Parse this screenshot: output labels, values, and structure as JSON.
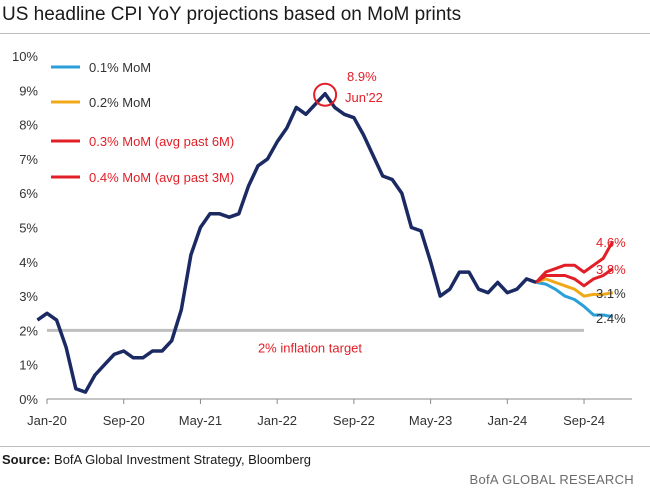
{
  "title": "US headline CPI YoY projections based on MoM prints",
  "source_label": "Source:",
  "source_text": "BofA Global Investment Strategy, Bloomberg",
  "brand": "BofA GLOBAL RESEARCH",
  "colors": {
    "history": "#1b2a63",
    "mom01": "#2b9fd9",
    "mom02": "#f0a818",
    "mom03": "#e21e26",
    "mom04": "#e21e26",
    "target": "#bfbfbf",
    "annotation": "#e21e26"
  },
  "chart_data": {
    "type": "line",
    "title": "US headline CPI YoY projections based on MoM prints",
    "ylim": [
      0,
      10
    ],
    "y_ticks": [
      "0%",
      "1%",
      "2%",
      "3%",
      "4%",
      "5%",
      "6%",
      "7%",
      "8%",
      "9%",
      "10%"
    ],
    "x_ticks": [
      "Jan-20",
      "Sep-20",
      "May-21",
      "Jan-22",
      "Sep-22",
      "May-23",
      "Jan-24",
      "Sep-24"
    ],
    "x_range": [
      "2020-01",
      "2025-02"
    ],
    "grid": false,
    "legend_position": "top-left",
    "history": {
      "x": [
        "2019-12",
        "2020-01",
        "2020-02",
        "2020-03",
        "2020-04",
        "2020-05",
        "2020-06",
        "2020-07",
        "2020-08",
        "2020-09",
        "2020-10",
        "2020-11",
        "2020-12",
        "2021-01",
        "2021-02",
        "2021-03",
        "2021-04",
        "2021-05",
        "2021-06",
        "2021-07",
        "2021-08",
        "2021-09",
        "2021-10",
        "2021-11",
        "2021-12",
        "2022-01",
        "2022-02",
        "2022-03",
        "2022-04",
        "2022-05",
        "2022-06",
        "2022-07",
        "2022-08",
        "2022-09",
        "2022-10",
        "2022-11",
        "2022-12",
        "2023-01",
        "2023-02",
        "2023-03",
        "2023-04",
        "2023-05",
        "2023-06",
        "2023-07",
        "2023-08",
        "2023-09",
        "2023-10",
        "2023-11",
        "2023-12",
        "2024-01",
        "2024-02",
        "2024-03",
        "2024-04"
      ],
      "y": [
        2.3,
        2.5,
        2.3,
        1.5,
        0.3,
        0.2,
        0.7,
        1.0,
        1.3,
        1.4,
        1.2,
        1.2,
        1.4,
        1.4,
        1.7,
        2.6,
        4.2,
        5.0,
        5.4,
        5.4,
        5.3,
        5.4,
        6.2,
        6.8,
        7.0,
        7.5,
        7.9,
        8.5,
        8.3,
        8.6,
        8.9,
        8.5,
        8.3,
        8.2,
        7.7,
        7.1,
        6.5,
        6.4,
        6.0,
        5.0,
        4.9,
        4.0,
        3.0,
        3.2,
        3.7,
        3.7,
        3.2,
        3.1,
        3.4,
        3.1,
        3.2,
        3.5,
        3.4
      ]
    },
    "series": [
      {
        "name": "0.1% MoM",
        "x": [
          "2024-04",
          "2024-05",
          "2024-06",
          "2024-07",
          "2024-08",
          "2024-09",
          "2024-10",
          "2024-11",
          "2024-12"
        ],
        "y": [
          3.4,
          3.35,
          3.2,
          3.0,
          2.9,
          2.7,
          2.45,
          2.45,
          2.4
        ]
      },
      {
        "name": "0.2% MoM",
        "x": [
          "2024-04",
          "2024-05",
          "2024-06",
          "2024-07",
          "2024-08",
          "2024-09",
          "2024-10",
          "2024-11",
          "2024-12"
        ],
        "y": [
          3.4,
          3.5,
          3.4,
          3.3,
          3.2,
          3.0,
          3.05,
          3.05,
          3.1
        ]
      },
      {
        "name": "0.3% MoM (avg past 6M)",
        "x": [
          "2024-04",
          "2024-05",
          "2024-06",
          "2024-07",
          "2024-08",
          "2024-09",
          "2024-10",
          "2024-11",
          "2024-12"
        ],
        "y": [
          3.4,
          3.6,
          3.6,
          3.6,
          3.5,
          3.3,
          3.5,
          3.6,
          3.8
        ]
      },
      {
        "name": "0.4% MoM (avg past 3M)",
        "x": [
          "2024-04",
          "2024-05",
          "2024-06",
          "2024-07",
          "2024-08",
          "2024-09",
          "2024-10",
          "2024-11",
          "2024-12"
        ],
        "y": [
          3.4,
          3.7,
          3.8,
          3.9,
          3.9,
          3.7,
          3.9,
          4.1,
          4.6
        ]
      }
    ],
    "end_labels": [
      "2.4%",
      "3.1%",
      "3.8%",
      "4.6%"
    ],
    "target": {
      "value": 2.0,
      "label": "2% inflation target"
    },
    "peak": {
      "x": "2022-06",
      "y": 8.9,
      "label_value": "8.9%",
      "label_date": "Jun'22"
    }
  }
}
